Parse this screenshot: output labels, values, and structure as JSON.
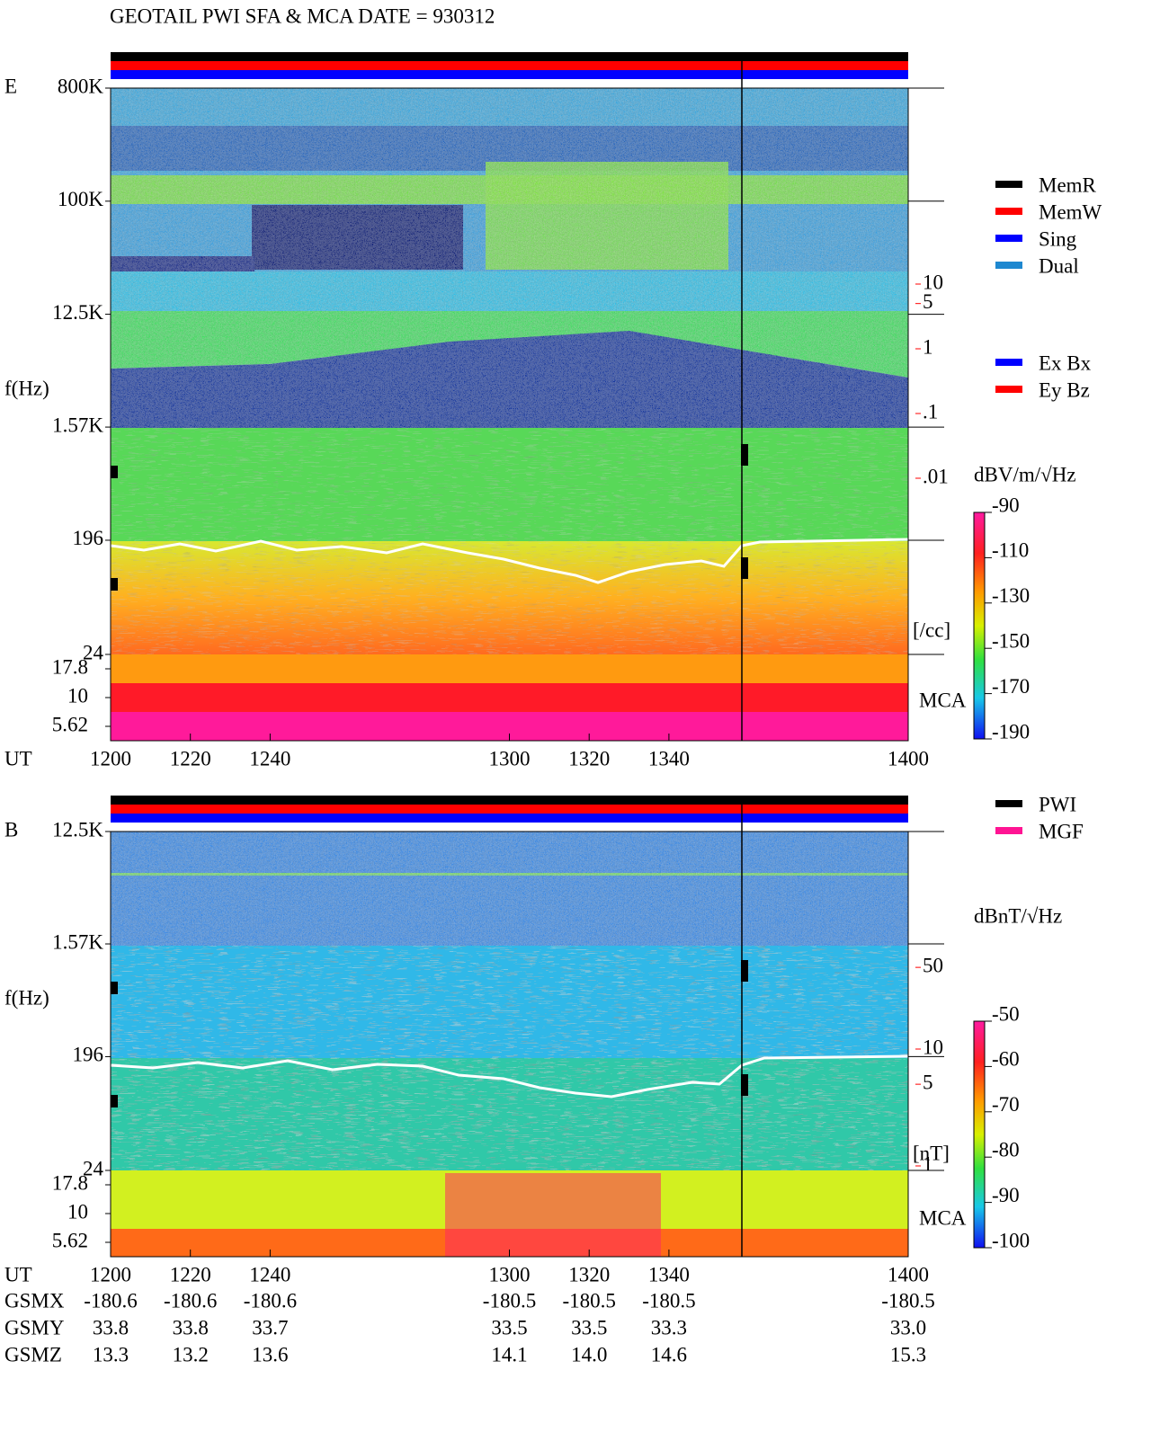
{
  "title": "GEOTAIL  PWI SFA & MCA   DATE = 930312",
  "chart_data": [
    {
      "type": "spectrogram",
      "panel_label": "E",
      "y_label": "f(Hz)",
      "x_label": "UT",
      "log_y": true,
      "ylim": [
        24,
        800000
      ],
      "yticks": [
        {
          "value": 800000,
          "label": "800K"
        },
        {
          "value": 100000,
          "label": "100K"
        },
        {
          "value": 12500,
          "label": "12.5K"
        },
        {
          "value": 1570,
          "label": "1.57K"
        },
        196,
        24
      ],
      "mca_channels": [
        17.8,
        10,
        5.62
      ],
      "mca_label": "MCA",
      "xlim": [
        1200,
        1400
      ],
      "xticks": [
        1200,
        1220,
        1240,
        1300,
        1320,
        1340,
        1400
      ],
      "colorbar_label": "dBV/m/√Hz",
      "clim": [
        -190,
        -90
      ],
      "cticks": [
        -90,
        -110,
        -130,
        -150,
        -170,
        -190
      ],
      "right_axis_unit": "[/cc]",
      "right_lim": [
        0.001,
        100
      ],
      "right_ticks": [
        10,
        5,
        1,
        {
          "value": 0.1,
          "label": ".1"
        },
        {
          "value": 0.01,
          "label": ".01"
        }
      ],
      "right_color": "#ff0000",
      "legend": [
        {
          "name": "MemR",
          "color": "#000000"
        },
        {
          "name": "MemW",
          "color": "#ff0000"
        },
        {
          "name": "Sing",
          "color": "#0000ff"
        },
        {
          "name": "Dual",
          "color": "#1e88d0"
        }
      ],
      "legend2": [
        {
          "name": "Ex Bx",
          "color": "#0000ff"
        },
        {
          "name": "Ey Bz",
          "color": "#ff0000"
        }
      ]
    },
    {
      "type": "spectrogram",
      "panel_label": "B",
      "y_label": "f(Hz)",
      "x_label": "UT",
      "log_y": true,
      "ylim": [
        24,
        12500
      ],
      "yticks": [
        {
          "value": 12500,
          "label": "12.5K"
        },
        {
          "value": 1570,
          "label": "1.57K"
        },
        196,
        24
      ],
      "mca_channels": [
        17.8,
        10,
        5.62
      ],
      "mca_label": "MCA",
      "xlim": [
        1200,
        1400
      ],
      "xticks": [
        1200,
        1220,
        1240,
        1300,
        1320,
        1340,
        1400
      ],
      "colorbar_label": "dBnT/√Hz",
      "clim": [
        -100,
        -50
      ],
      "cticks": [
        -50,
        -60,
        -70,
        -80,
        -90,
        -100
      ],
      "right_axis_unit": "[nT]",
      "right_lim": [
        1,
        100
      ],
      "right_ticks": [
        50,
        10,
        5,
        1
      ],
      "right_color": "#ff0000",
      "legend": [
        {
          "name": "PWI",
          "color": "#000000"
        },
        {
          "name": "MGF",
          "color": "#ff1493"
        }
      ]
    }
  ],
  "orbit": {
    "rows": [
      {
        "label": "GSMX",
        "values": [
          "-180.6",
          "-180.6",
          "-180.6",
          "-180.5",
          "-180.5",
          "-180.5",
          "-180.5"
        ]
      },
      {
        "label": "GSMY",
        "values": [
          "33.8",
          "33.8",
          "33.7",
          "33.5",
          "33.5",
          "33.3",
          "33.0"
        ]
      },
      {
        "label": "GSMZ",
        "values": [
          "13.3",
          "13.2",
          "13.6",
          "14.1",
          "14.0",
          "14.6",
          "15.3"
        ]
      }
    ]
  }
}
